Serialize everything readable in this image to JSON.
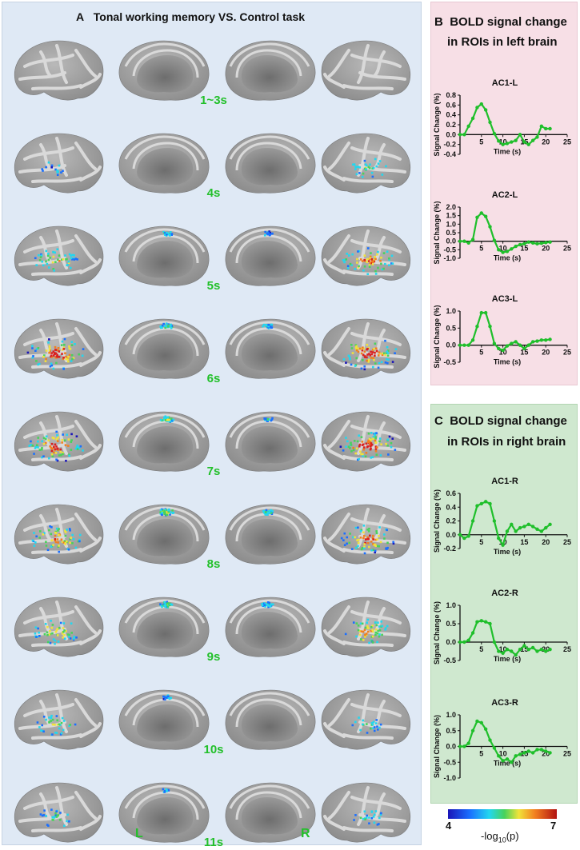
{
  "panel_a": {
    "letter": "A",
    "title": "Tonal working memory  VS.  Control task",
    "timepoints": [
      {
        "label": "1~3s",
        "activation": [
          0,
          0,
          0,
          0
        ]
      },
      {
        "label": "4s",
        "activation": [
          0.15,
          0,
          0,
          0.35
        ]
      },
      {
        "label": "5s",
        "activation": [
          0.55,
          0.25,
          0.15,
          0.75
        ]
      },
      {
        "label": "6s",
        "activation": [
          0.95,
          0.35,
          0.25,
          0.95
        ]
      },
      {
        "label": "7s",
        "activation": [
          0.9,
          0.45,
          0.2,
          0.95
        ]
      },
      {
        "label": "8s",
        "activation": [
          0.75,
          0.55,
          0.35,
          0.85
        ]
      },
      {
        "label": "9s",
        "activation": [
          0.6,
          0.4,
          0.3,
          0.65
        ]
      },
      {
        "label": "10s",
        "activation": [
          0.4,
          0.2,
          0,
          0.25
        ]
      },
      {
        "label": "11s",
        "activation": [
          0.3,
          0.1,
          0,
          0.25
        ]
      }
    ],
    "hemisphere_left": "L",
    "hemisphere_right": "R"
  },
  "panel_b": {
    "letter": "B",
    "title_line1": "BOLD signal change",
    "title_line2": "in ROIs in left brain"
  },
  "panel_c": {
    "letter": "C",
    "title_line1": "BOLD signal change",
    "title_line2": "in ROIs in right brain"
  },
  "colorbar": {
    "min": "4",
    "max": "7",
    "label": "-log10(p)"
  },
  "colors": {
    "line": "#1fbf2b",
    "label_green": "#22c02a",
    "panel_a_bg": "#dfe9f5",
    "panel_b_bg": "#f7dfe6",
    "panel_c_bg": "#cfe8cf"
  },
  "chart_data": [
    {
      "type": "line",
      "title": "AC1-L",
      "xlabel": "Time (s)",
      "ylabel": "Signal Change (%)",
      "xlim": [
        0,
        25
      ],
      "ylim": [
        -0.4,
        0.8
      ],
      "xticks": [
        0,
        5,
        10,
        15,
        20,
        25
      ],
      "yticks": [
        -0.4,
        -0.2,
        0.0,
        0.2,
        0.4,
        0.6,
        0.8
      ],
      "ytick_labels": [
        "-0.4",
        "-0.2",
        "0.0",
        "0.2",
        "0.4",
        "0.6",
        "0.8"
      ],
      "x": [
        0,
        1,
        2,
        3,
        4,
        5,
        6,
        7,
        8,
        9,
        10,
        11,
        12,
        13,
        14,
        15,
        16,
        17,
        18,
        19,
        20,
        21
      ],
      "y": [
        0.0,
        0.0,
        0.17,
        0.33,
        0.55,
        0.62,
        0.5,
        0.25,
        0.02,
        -0.13,
        -0.2,
        -0.18,
        -0.15,
        -0.12,
        0.0,
        -0.15,
        -0.2,
        -0.12,
        -0.05,
        0.17,
        0.12,
        0.12
      ]
    },
    {
      "type": "line",
      "title": "AC2-L",
      "xlabel": "Time (s)",
      "ylabel": "Signal Change (%)",
      "xlim": [
        0,
        25
      ],
      "ylim": [
        -1.0,
        2.0
      ],
      "xticks": [
        0,
        5,
        10,
        15,
        20,
        25
      ],
      "yticks": [
        -1.0,
        -0.5,
        0.0,
        0.5,
        1.0,
        1.5,
        2.0
      ],
      "ytick_labels": [
        "-1.0",
        "-0.5",
        "0.0",
        "0.5",
        "1.0",
        "1.5",
        "2.0"
      ],
      "x": [
        0,
        1,
        2,
        3,
        4,
        5,
        6,
        7,
        8,
        9,
        10,
        11,
        12,
        13,
        14,
        15,
        16,
        17,
        18,
        19,
        20,
        21
      ],
      "y": [
        0.0,
        0.0,
        -0.1,
        0.1,
        1.4,
        1.65,
        1.45,
        0.85,
        0.05,
        -0.5,
        -0.65,
        -0.6,
        -0.45,
        -0.3,
        -0.2,
        -0.15,
        -0.05,
        -0.1,
        -0.15,
        -0.12,
        -0.08,
        -0.05
      ]
    },
    {
      "type": "line",
      "title": "AC3-L",
      "xlabel": "Time (s)",
      "ylabel": "Signal Change (%)",
      "xlim": [
        0,
        25
      ],
      "ylim": [
        -0.5,
        1.0
      ],
      "xticks": [
        0,
        5,
        10,
        15,
        20,
        25
      ],
      "yticks": [
        -0.5,
        0.0,
        0.5,
        1.0
      ],
      "ytick_labels": [
        "-0.5",
        "0.0",
        "0.5",
        "1.0"
      ],
      "x": [
        0,
        1,
        2,
        3,
        4,
        5,
        6,
        7,
        8,
        9,
        10,
        11,
        12,
        13,
        14,
        15,
        16,
        17,
        18,
        19,
        20,
        21
      ],
      "y": [
        0.0,
        0.0,
        0.0,
        0.15,
        0.55,
        0.95,
        0.95,
        0.55,
        0.05,
        -0.1,
        -0.15,
        -0.02,
        0.05,
        0.1,
        0.0,
        -0.1,
        0.0,
        0.1,
        0.12,
        0.15,
        0.15,
        0.17
      ]
    },
    {
      "type": "line",
      "title": "AC1-R",
      "xlabel": "Time (s)",
      "ylabel": "Signal Change (%)",
      "xlim": [
        0,
        25
      ],
      "ylim": [
        -0.2,
        0.6
      ],
      "xticks": [
        0,
        5,
        10,
        15,
        20,
        25
      ],
      "yticks": [
        -0.2,
        0.0,
        0.2,
        0.4,
        0.6
      ],
      "ytick_labels": [
        "-0.2",
        "0.0",
        "0.2",
        "0.4",
        "0.6"
      ],
      "x": [
        0,
        1,
        2,
        3,
        4,
        5,
        6,
        7,
        8,
        9,
        10,
        11,
        12,
        13,
        14,
        15,
        16,
        17,
        18,
        19,
        20,
        21
      ],
      "y": [
        0.0,
        -0.05,
        -0.02,
        0.2,
        0.42,
        0.45,
        0.48,
        0.45,
        0.2,
        -0.05,
        -0.15,
        0.05,
        0.15,
        0.05,
        0.1,
        0.12,
        0.15,
        0.12,
        0.08,
        0.05,
        0.1,
        0.15
      ]
    },
    {
      "type": "line",
      "title": "AC2-R",
      "xlabel": "Time (s)",
      "ylabel": "Signal Change (%)",
      "xlim": [
        0,
        25
      ],
      "ylim": [
        -0.5,
        1.0
      ],
      "xticks": [
        0,
        5,
        10,
        15,
        20,
        25
      ],
      "yticks": [
        -0.5,
        0.0,
        0.5,
        1.0
      ],
      "ytick_labels": [
        "-0.5",
        "0.0",
        "0.5",
        "1.0"
      ],
      "x": [
        0,
        1,
        2,
        3,
        4,
        5,
        6,
        7,
        8,
        9,
        10,
        11,
        12,
        13,
        14,
        15,
        16,
        17,
        18,
        19,
        20,
        21
      ],
      "y": [
        0.0,
        0.0,
        0.05,
        0.25,
        0.55,
        0.58,
        0.55,
        0.5,
        0.0,
        -0.25,
        -0.3,
        -0.2,
        -0.25,
        -0.35,
        -0.2,
        -0.1,
        -0.2,
        -0.15,
        -0.25,
        -0.2,
        -0.25,
        -0.2
      ]
    },
    {
      "type": "line",
      "title": "AC3-R",
      "xlabel": "Time (s)",
      "ylabel": "Signal Change (%)",
      "xlim": [
        0,
        25
      ],
      "ylim": [
        -1.0,
        1.0
      ],
      "xticks": [
        0,
        5,
        10,
        15,
        20,
        25
      ],
      "yticks": [
        -1.0,
        -0.5,
        0.0,
        0.5,
        1.0
      ],
      "ytick_labels": [
        "-1.0",
        "-0.5",
        "0.0",
        "0.5",
        "1.0"
      ],
      "x": [
        0,
        1,
        2,
        3,
        4,
        5,
        6,
        7,
        8,
        9,
        10,
        11,
        12,
        13,
        14,
        15,
        16,
        17,
        18,
        19,
        20,
        21
      ],
      "y": [
        0.0,
        0.0,
        0.1,
        0.5,
        0.8,
        0.75,
        0.55,
        0.2,
        -0.05,
        -0.3,
        -0.45,
        -0.4,
        -0.5,
        -0.3,
        -0.25,
        -0.2,
        -0.15,
        -0.2,
        -0.1,
        -0.1,
        -0.15,
        -0.2
      ]
    }
  ]
}
